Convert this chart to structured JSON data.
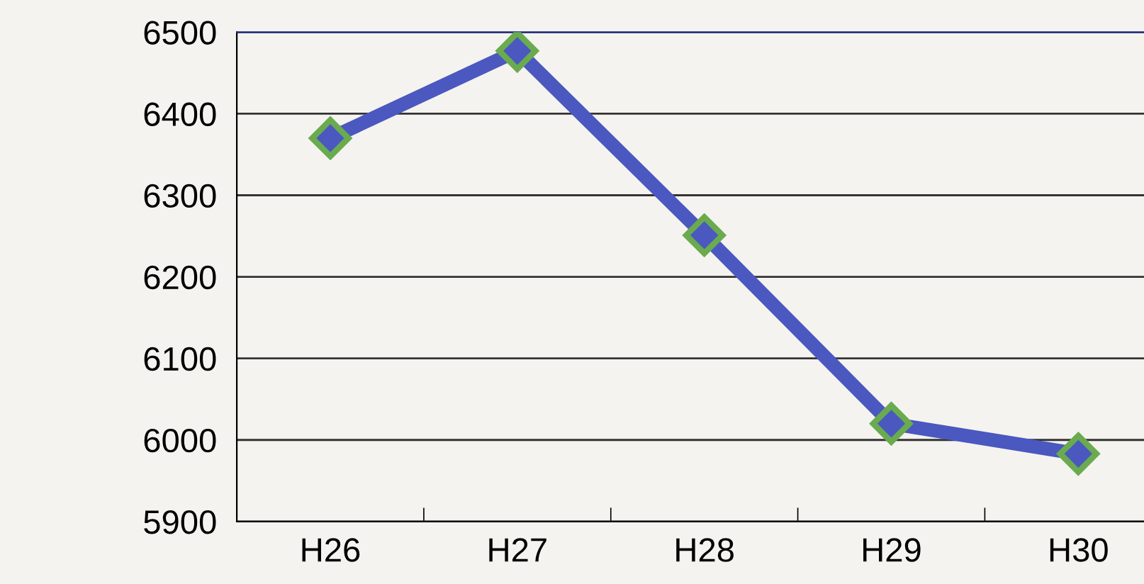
{
  "chart_data": {
    "type": "line",
    "categories": [
      "H26",
      "H27",
      "H28",
      "H29",
      "H30"
    ],
    "series": [
      {
        "color": "#4a58c0",
        "values": [
          6370,
          6477,
          6251,
          6020,
          5983
        ]
      }
    ],
    "ylim": [
      5900,
      6500
    ],
    "yticks": [
      5900,
      6000,
      6100,
      6200,
      6300,
      6400,
      6500
    ],
    "grid": "y",
    "marker": "diamond",
    "line_style": "solid",
    "legend": false
  }
}
